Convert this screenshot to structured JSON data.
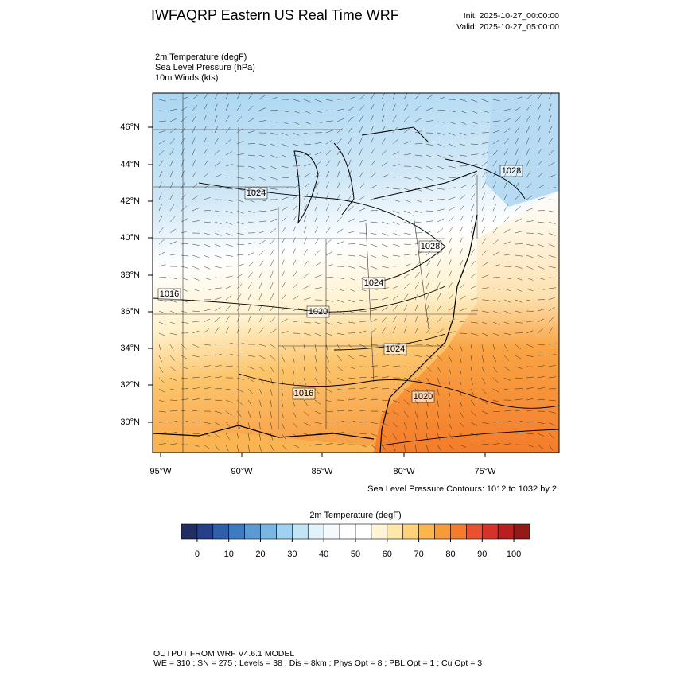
{
  "header": {
    "title": "IWFAQRP Eastern US Real Time WRF",
    "init": "Init: 2025-10-27_00:00:00",
    "valid": "Valid: 2025-10-27_05:00:00"
  },
  "fields": [
    "2m Temperature   (degF)",
    "Sea Level Pressure   (hPa)",
    "10m Winds   (kts)"
  ],
  "map": {
    "lat_labels": [
      "46°N",
      "44°N",
      "42°N",
      "40°N",
      "38°N",
      "36°N",
      "34°N",
      "32°N",
      "30°N"
    ],
    "lon_labels": [
      "95°W",
      "90°W",
      "85°W",
      "80°W",
      "75°W"
    ],
    "contour_labels": [
      "1024",
      "1028",
      "1028",
      "1024",
      "1016",
      "1020",
      "1024",
      "1016",
      "1020"
    ],
    "contour_note": "Sea Level Pressure Contours: 1012 to 1032 by 2"
  },
  "colorbar": {
    "title": "2m Temperature  (degF)",
    "range": [
      -5,
      105
    ],
    "ticks": [
      0,
      10,
      20,
      30,
      40,
      50,
      60,
      70,
      80,
      90,
      100
    ],
    "colors": [
      "#1f2d63",
      "#253f8a",
      "#2f5fa8",
      "#3d7cc0",
      "#5a9bd5",
      "#7ab6e3",
      "#9ed2f0",
      "#c2e4f5",
      "#e0f2fa",
      "#f4f9fc",
      "#ffffff",
      "#ffffff",
      "#fff5d6",
      "#ffe8a8",
      "#ffd27a",
      "#fdb54e",
      "#f99a3a",
      "#f47c2a",
      "#e8522e",
      "#d63328",
      "#b8201f",
      "#941a1a"
    ]
  },
  "footer": [
    "OUTPUT FROM WRF V4.6.1 MODEL",
    "WE = 310 ; SN = 275 ; Levels = 38 ; Dis = 8km ; Phys Opt = 8 ; PBL Opt = 1 ; Cu Opt = 3"
  ]
}
